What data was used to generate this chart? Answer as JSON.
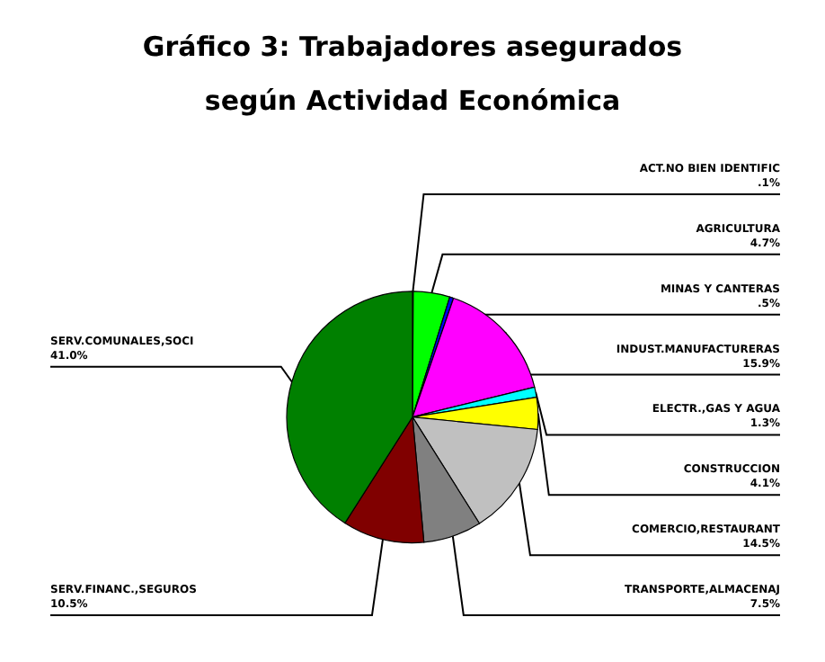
{
  "chart_data": {
    "type": "pie",
    "title": "Gráfico 3: Trabajadores asegurados\nsegún Actividad Económica",
    "categories": [
      "ACT.NO BIEN IDENTIFIC",
      "AGRICULTURA",
      "MINAS Y CANTERAS",
      "INDUST.MANUFACTURERAS",
      "ELECTR.,GAS Y AGUA",
      "CONSTRUCCION",
      "COMERCIO,RESTAURANT",
      "TRANSPORTE,ALMACENAJ",
      "SERV.FINANC.,SEGUROS",
      "SERV.COMUNALES,SOCI"
    ],
    "values": [
      0.1,
      4.7,
      0.5,
      15.9,
      1.3,
      4.1,
      14.5,
      7.5,
      10.5,
      41.0
    ],
    "value_labels": [
      ".1%",
      "4.7%",
      ".5%",
      "15.9%",
      "1.3%",
      "4.1%",
      "14.5%",
      "7.5%",
      "10.5%",
      "41.0%"
    ],
    "colors": [
      "#000080",
      "#00ff00",
      "#0000ff",
      "#ff00ff",
      "#00ffff",
      "#ffff00",
      "#c0c0c0",
      "#808080",
      "#800000",
      "#008000"
    ],
    "legend": false
  }
}
